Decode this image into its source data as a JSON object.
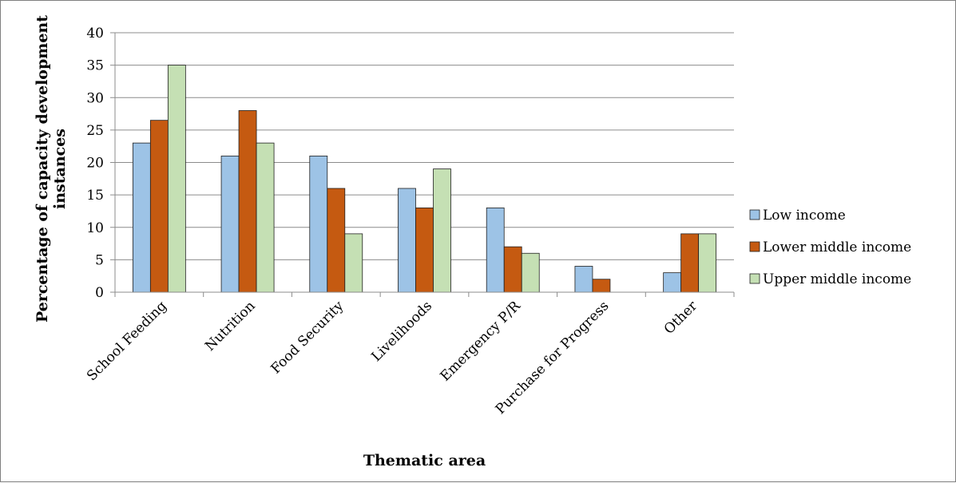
{
  "chart_data": {
    "type": "bar",
    "title": "",
    "xlabel": "Thematic area",
    "ylabel_lines": [
      "Percentage of capacity development",
      "instances"
    ],
    "categories": [
      "School Feeding",
      "Nutrition",
      "Food Security",
      "Livelihoods",
      "Emergency P/R",
      "Purchase for Progress",
      "Other"
    ],
    "series": [
      {
        "name": "Low income",
        "color": "#9dc3e6",
        "values": [
          23,
          21,
          21,
          16,
          13,
          4,
          3
        ]
      },
      {
        "name": "Lower middle income",
        "color": "#c55a11",
        "values": [
          26.5,
          28,
          16,
          13,
          7,
          2,
          9
        ]
      },
      {
        "name": "Upper middle income",
        "color": "#c5e0b4",
        "values": [
          35,
          23,
          9,
          19,
          6,
          0,
          9
        ]
      }
    ],
    "ylim": [
      0,
      40
    ],
    "yticks": [
      0,
      5,
      10,
      15,
      20,
      25,
      30,
      35,
      40
    ],
    "grid": true,
    "legend_position": "right"
  }
}
